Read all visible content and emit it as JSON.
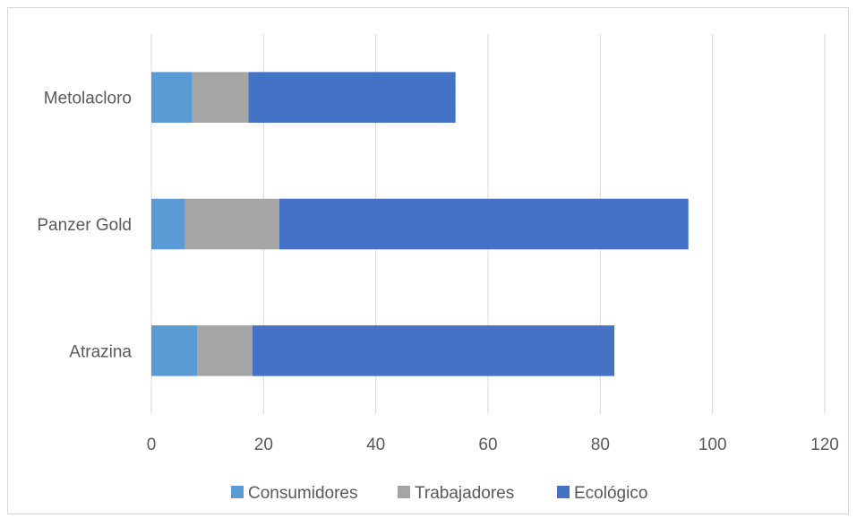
{
  "chart_data": {
    "type": "bar",
    "orientation": "horizontal",
    "stacked": true,
    "categories": [
      "Metolacloro",
      "Panzer Gold",
      "Atrazina"
    ],
    "series": [
      {
        "name": "Consumidores",
        "color": "#5b9bd5",
        "values": [
          7.3,
          6.0,
          8.2
        ]
      },
      {
        "name": "Trabajadores",
        "color": "#a5a5a5",
        "values": [
          10.0,
          16.8,
          9.8
        ]
      },
      {
        "name": "Ecológico",
        "color": "#4472c4",
        "values": [
          36.9,
          72.9,
          64.5
        ]
      }
    ],
    "xlim": [
      0,
      120
    ],
    "xticks": [
      "0",
      "20",
      "40",
      "60",
      "80",
      "100",
      "120"
    ],
    "grid": "vertical",
    "legend_position": "bottom"
  }
}
